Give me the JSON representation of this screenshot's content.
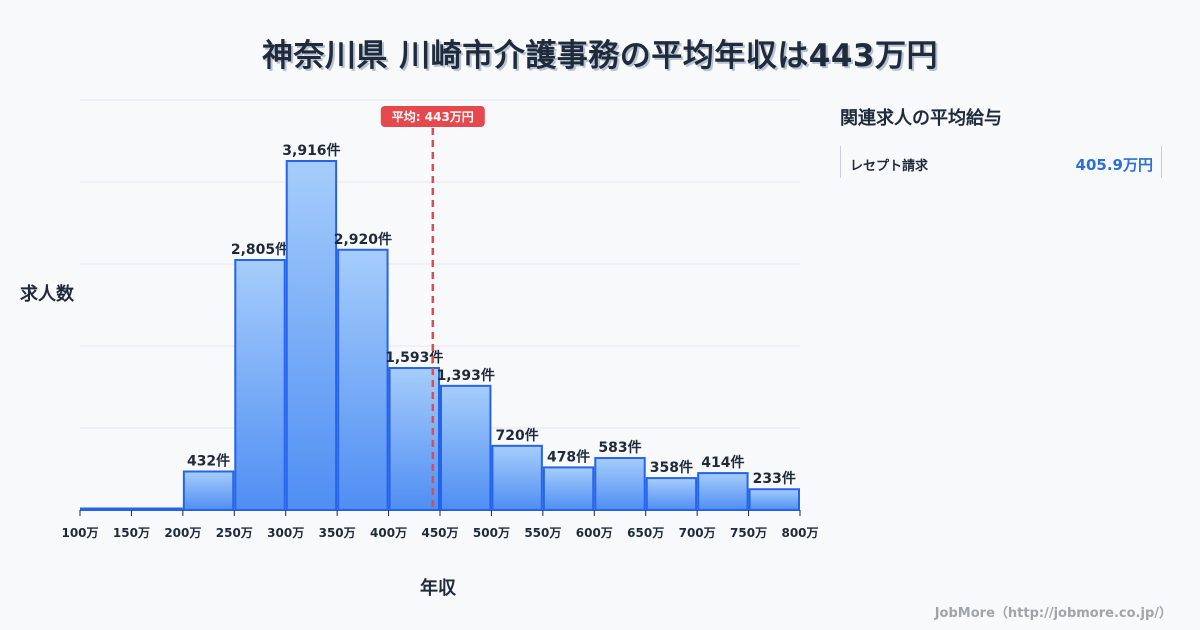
{
  "title": "神奈川県 川崎市介護事務の平均年収は443万円",
  "axis": {
    "ylabel": "求人数",
    "xlabel": "年収"
  },
  "average_label": "平均: 443万円",
  "side_panel": {
    "title": "関連求人の平均給与",
    "items": [
      {
        "job": "レセプト請求",
        "salary": "405.9万円"
      }
    ]
  },
  "credit": "JobMore（http://jobmore.co.jp/）",
  "colors": {
    "bar_top": "#a6cdfb",
    "bar_bottom": "#4f8ef3",
    "bar_border": "#2563eb",
    "average_line": "#e5484d",
    "grid": "#e3e6ec"
  },
  "chart_data": {
    "type": "bar",
    "title": "神奈川県 川崎市介護事務の平均年収は443万円",
    "xlabel": "年収",
    "ylabel": "求人数",
    "categories": [
      "100-150万",
      "150-200万",
      "200-250万",
      "250-300万",
      "300-350万",
      "350-400万",
      "400-450万",
      "450-500万",
      "500-550万",
      "550-600万",
      "600-650万",
      "650-700万",
      "700-750万",
      "750-800万"
    ],
    "x_ticks": [
      "100万",
      "150万",
      "200万",
      "250万",
      "300万",
      "350万",
      "400万",
      "450万",
      "500万",
      "550万",
      "600万",
      "650万",
      "700万",
      "750万",
      "800万"
    ],
    "values": [
      0,
      0,
      432,
      2805,
      3916,
      2920,
      1593,
      1393,
      720,
      478,
      583,
      358,
      414,
      233
    ],
    "value_labels": [
      "",
      "",
      "432件",
      "2,805件",
      "3,916件",
      "2,920件",
      "1,593件",
      "1,393件",
      "720件",
      "478件",
      "583件",
      "358件",
      "414件",
      "233件"
    ],
    "average": 443,
    "average_label": "平均: 443万円",
    "ylim": [
      0,
      4600
    ],
    "grid": true,
    "legend": "none"
  }
}
